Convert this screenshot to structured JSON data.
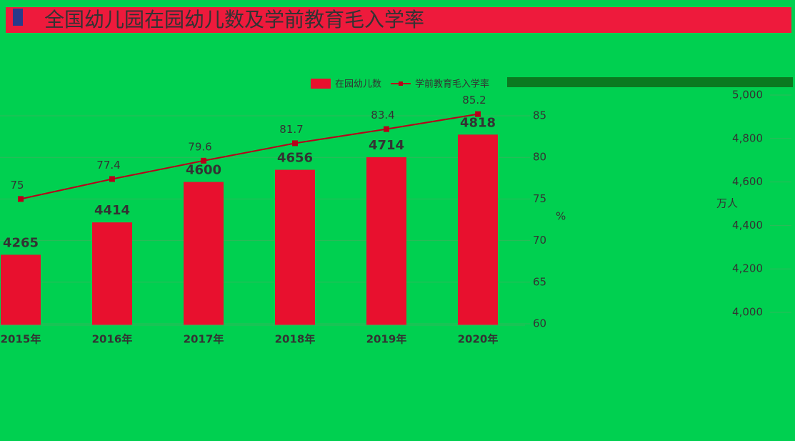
{
  "chart_data": {
    "type": "bar-line",
    "title": "全国幼儿园在园幼儿数及学前教育毛入学率",
    "categories": [
      "2015年",
      "2016年",
      "2017年",
      "2018年",
      "2019年",
      "2020年"
    ],
    "series": [
      {
        "name": "在园幼儿数",
        "color": "#e8102e",
        "type": "bar",
        "axis": "y2",
        "values": [
          4265,
          4414,
          4600,
          4656,
          4714,
          4818
        ]
      },
      {
        "name": "学前教育毛入学率",
        "color": "#b8001a",
        "type": "line",
        "axis": "y",
        "values": [
          75,
          77.4,
          79.6,
          81.7,
          83.4,
          85.2
        ]
      }
    ],
    "ylabel": "%",
    "ylim": [
      60,
      85
    ],
    "yticks": [
      60,
      65,
      70,
      75,
      80,
      85
    ],
    "y2label": "万人",
    "y2lim": [
      4000,
      5000
    ],
    "y2ticks": [
      {
        "value": 4000,
        "label": "4,000"
      },
      {
        "value": 4200,
        "label": "4,200"
      },
      {
        "value": 4400,
        "label": "4,400"
      },
      {
        "value": 4600,
        "label": "4,600"
      },
      {
        "value": 4800,
        "label": "4,800"
      },
      {
        "value": 5000,
        "label": "5,000"
      }
    ],
    "grid": true
  }
}
